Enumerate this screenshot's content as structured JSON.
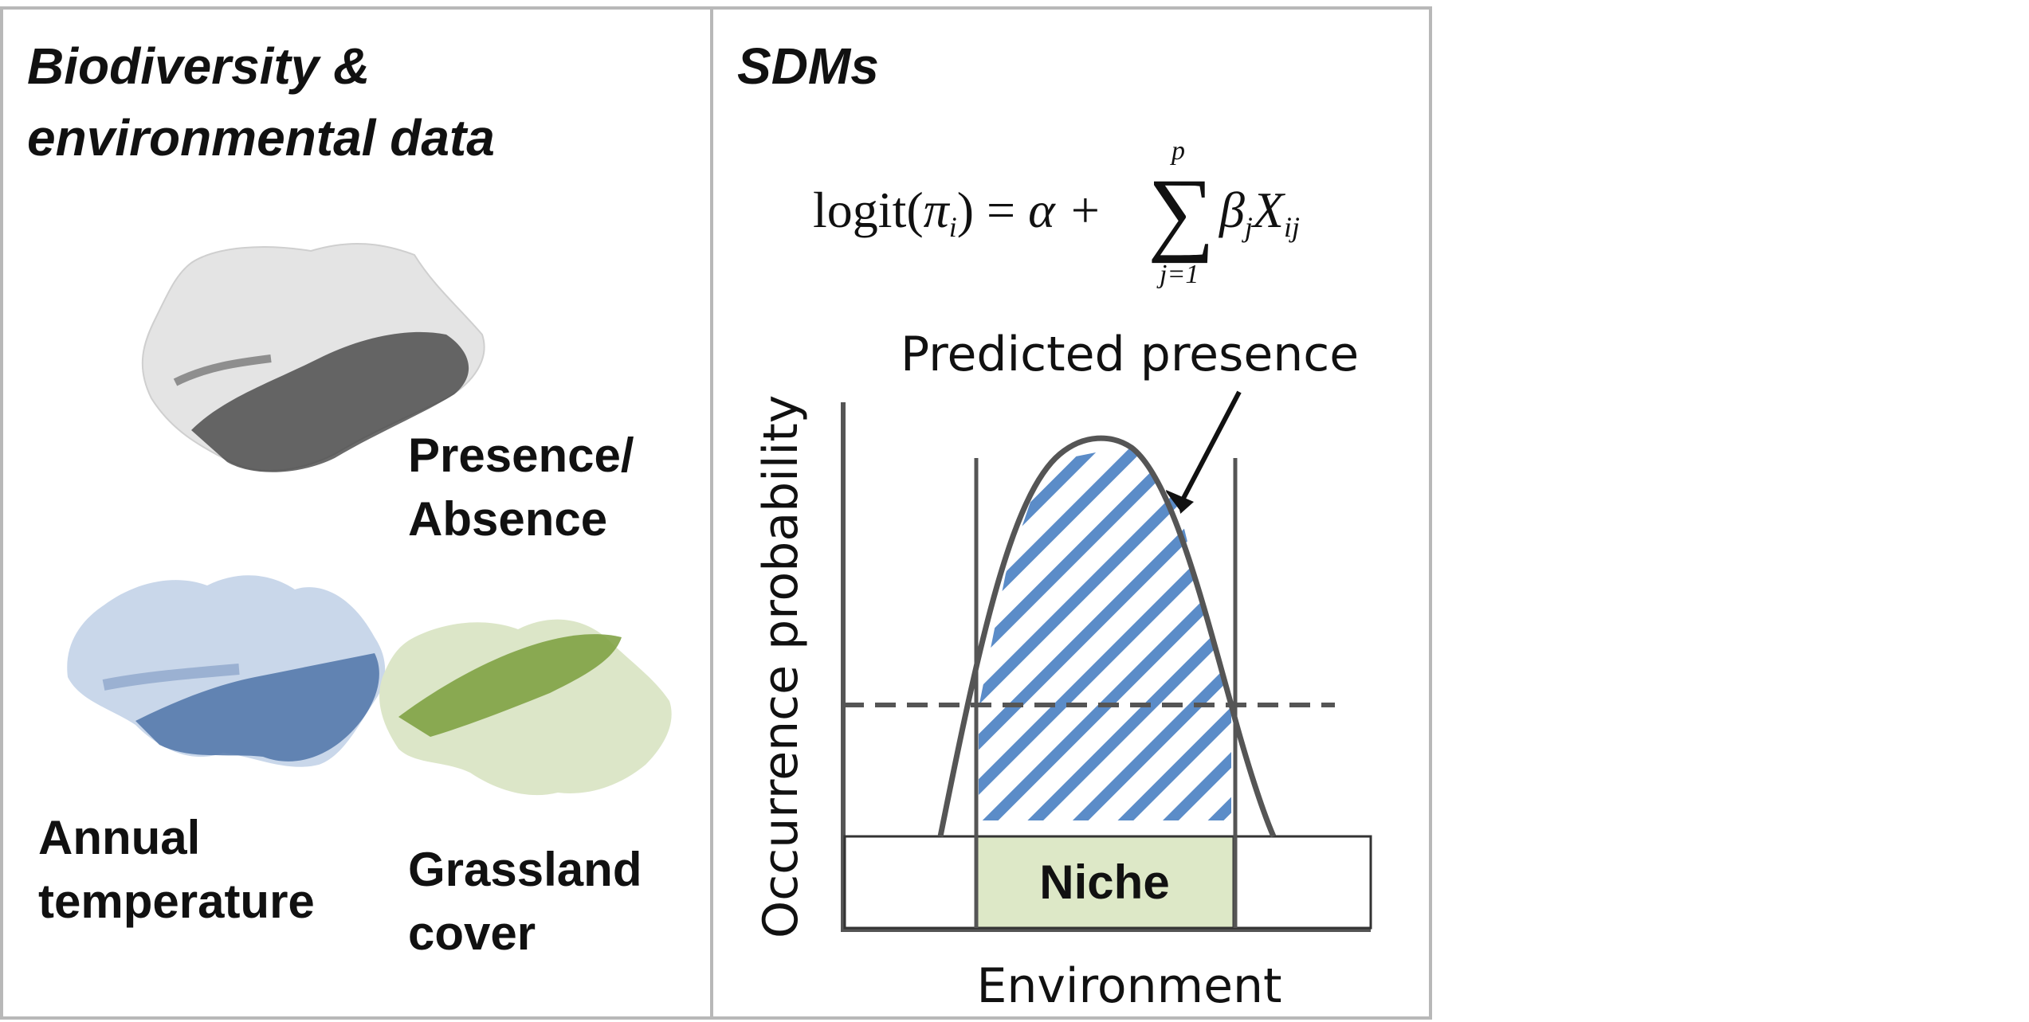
{
  "left_panel": {
    "title_line1": "Biodiversity &",
    "title_line2": "environmental data",
    "presence_line1": "Presence/",
    "presence_line2": "Absence",
    "temp_line1": "Annual",
    "temp_line2": "temperature",
    "grass_line1": "Grassland",
    "grass_line2": "cover"
  },
  "right_panel": {
    "title": "SDMs",
    "formula": {
      "lhs": "logit(",
      "pi": "π",
      "i": "i",
      "rparen_eq": ") = ",
      "alpha_plus": "α + ",
      "sum": "∑",
      "upper": "p",
      "lower": "j=1",
      "beta": "β",
      "j": "j",
      "X": "X",
      "ij": "ij"
    },
    "predicted_label": "Predicted presence",
    "y_axis": "Occurrence probability",
    "x_axis": "Environment",
    "niche": "Niche"
  },
  "colors": {
    "temp_blue": "#4f74a8",
    "grass_green": "#7a9e3c",
    "hatch_blue": "#5b8cc8",
    "niche_fill": "#dde8c7",
    "curve": "#555555"
  }
}
